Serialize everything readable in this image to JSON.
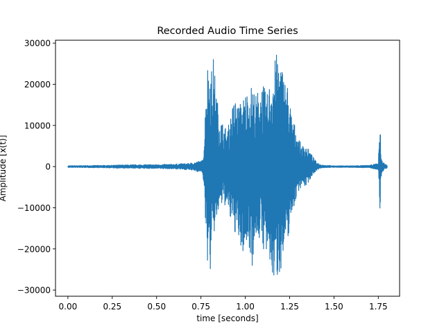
{
  "chart_data": {
    "type": "line",
    "title": "Recorded Audio Time Series",
    "xlabel": "time [seconds]",
    "ylabel": "Amplitude [x(t)]",
    "xlim": [
      -0.07,
      1.87
    ],
    "ylim": [
      -31500,
      30700
    ],
    "xticks": [
      0.0,
      0.25,
      0.5,
      0.75,
      1.0,
      1.25,
      1.5,
      1.75
    ],
    "xtick_labels": [
      "0.00",
      "0.25",
      "0.50",
      "0.75",
      "1.00",
      "1.25",
      "1.50",
      "1.75"
    ],
    "yticks": [
      -30000,
      -20000,
      -10000,
      0,
      10000,
      20000,
      30000
    ],
    "ytick_labels": [
      "−30000",
      "−20000",
      "−10000",
      "0",
      "10000",
      "20000",
      "30000"
    ],
    "grid": false,
    "series": [
      {
        "color": "#1f77b4",
        "envelope_time": [
          0.0,
          0.2,
          0.3,
          0.5,
          0.6,
          0.68,
          0.72,
          0.76,
          0.77,
          0.78,
          0.79,
          0.8,
          0.81,
          0.82,
          0.83,
          0.84,
          0.85,
          0.86,
          0.88,
          0.9,
          0.92,
          0.94,
          0.96,
          0.98,
          1.0,
          1.02,
          1.04,
          1.06,
          1.08,
          1.1,
          1.12,
          1.14,
          1.16,
          1.18,
          1.2,
          1.22,
          1.24,
          1.26,
          1.28,
          1.3,
          1.32,
          1.34,
          1.36,
          1.38,
          1.4,
          1.42,
          1.44,
          1.46,
          1.5,
          1.6,
          1.7,
          1.75,
          1.76,
          1.765,
          1.77,
          1.775,
          1.78,
          1.785,
          1.79,
          1.8
        ],
        "envelope_upper": [
          200,
          300,
          400,
          500,
          600,
          800,
          1100,
          1500,
          8000,
          22000,
          26000,
          25000,
          24000,
          26500,
          22000,
          17000,
          14000,
          12000,
          10000,
          9000,
          13000,
          17000,
          15000,
          16000,
          18000,
          19000,
          20000,
          17500,
          19500,
          20500,
          17000,
          21000,
          25000,
          28000,
          26000,
          22000,
          20000,
          13000,
          10000,
          7000,
          5000,
          5500,
          4000,
          2500,
          1200,
          600,
          400,
          300,
          200,
          200,
          300,
          800,
          13500,
          3000,
          1500,
          1200,
          1000,
          800,
          600,
          300
        ],
        "envelope_lower": [
          -200,
          -300,
          -400,
          -500,
          -600,
          -800,
          -1100,
          -1500,
          -9000,
          -19000,
          -25000,
          -28300,
          -20000,
          -18000,
          -15000,
          -13000,
          -11000,
          -10000,
          -9000,
          -11000,
          -14000,
          -16000,
          -18000,
          -22000,
          -20000,
          -19000,
          -24500,
          -17000,
          -18000,
          -20000,
          -22000,
          -26000,
          -28000,
          -27500,
          -25000,
          -22000,
          -18000,
          -12000,
          -9000,
          -6000,
          -4500,
          -5000,
          -3500,
          -2000,
          -1000,
          -500,
          -300,
          -250,
          -200,
          -200,
          -300,
          -800,
          -13500,
          -3000,
          -1500,
          -1200,
          -1000,
          -800,
          -600,
          -300
        ]
      }
    ]
  }
}
